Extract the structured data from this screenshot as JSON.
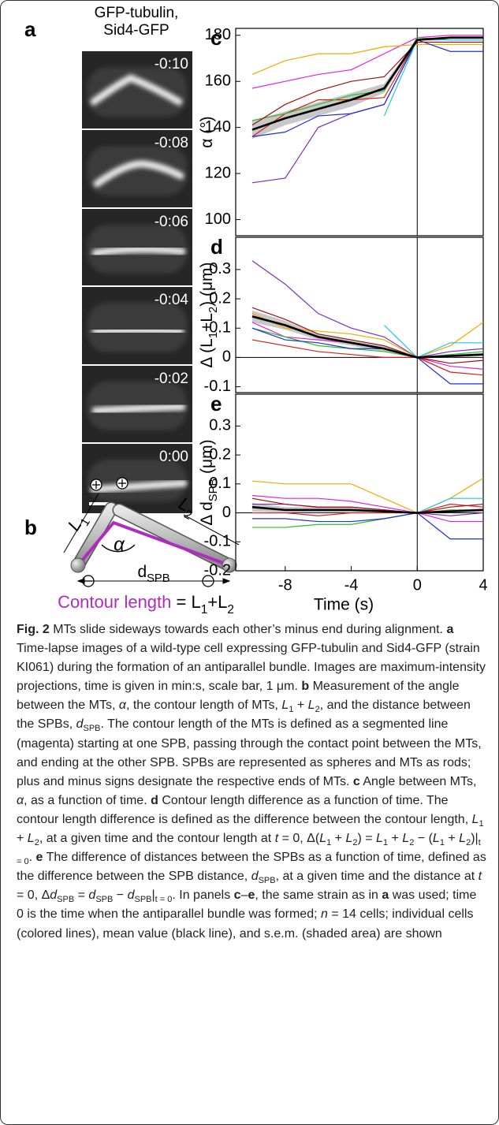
{
  "panel_a": {
    "label": "a",
    "title": [
      "GFP-tubulin,",
      "Sid4-GFP"
    ],
    "timestamps": [
      "-0:10",
      "-0:08",
      "-0:06",
      "-0:04",
      "-0:02",
      "0:00"
    ]
  },
  "panel_b": {
    "label": "b",
    "L1": [
      {
        "i": "L"
      },
      {
        "sub": "1"
      }
    ],
    "L2": [
      {
        "i": "L"
      },
      {
        "sub": "2"
      }
    ],
    "alpha": "α",
    "dspb": [
      {
        "t": "d"
      },
      {
        "sub": "SPB"
      }
    ],
    "contour": "Contour length",
    "equation": [
      {
        "t": " = L"
      },
      {
        "sub": "1"
      },
      {
        "t": "+L"
      },
      {
        "sub": "2"
      }
    ]
  },
  "chart_data": [
    {
      "type": "line",
      "panel": "c",
      "ylabel": [
        {
          "t": "α (°)"
        }
      ],
      "x": [
        -10,
        -8,
        -6,
        -4,
        -2,
        0,
        2,
        4
      ],
      "xlim": [
        -11,
        4
      ],
      "ylim": [
        93,
        183
      ],
      "yticks": [
        100,
        120,
        140,
        160,
        180
      ],
      "series": [
        {
          "color": "#7b2fbe",
          "values": [
            116,
            118,
            140,
            146,
            150,
            178,
            179,
            179
          ]
        },
        {
          "color": "#e81fd6",
          "values": [
            157,
            160,
            163,
            165,
            172,
            179,
            180,
            180
          ]
        },
        {
          "color": "#f2a900",
          "values": [
            163,
            169,
            172,
            172,
            175,
            176,
            176,
            176
          ]
        },
        {
          "color": "#d81e1e",
          "values": [
            136,
            146,
            152,
            152,
            153,
            178,
            179,
            179
          ]
        },
        {
          "color": "#2bbf2b",
          "values": [
            143,
            146,
            150,
            154,
            156,
            179,
            178,
            178
          ]
        },
        {
          "color": "#1f2fd6",
          "values": [
            136,
            138,
            145,
            146,
            150,
            178,
            173,
            173
          ]
        },
        {
          "color": "#1fc8e8",
          "values": [
            null,
            null,
            null,
            null,
            145,
            178,
            178,
            178
          ]
        },
        {
          "color": "#a01010",
          "values": [
            141,
            150,
            156,
            160,
            162,
            177,
            177,
            177
          ]
        },
        {
          "color": "#000000",
          "values": [
            139,
            144,
            148,
            152,
            157,
            178,
            179,
            179
          ],
          "sem": [
            4,
            3,
            3,
            3,
            2,
            0.5,
            0.5,
            0.5
          ]
        }
      ]
    },
    {
      "type": "line",
      "panel": "d",
      "ylabel": [
        {
          "t": "Δ (L"
        },
        {
          "sub": "1"
        },
        {
          "t": "+L"
        },
        {
          "sub": "2"
        },
        {
          "t": ") (μm)"
        }
      ],
      "x": [
        -10,
        -8,
        -6,
        -4,
        -2,
        0,
        2,
        4
      ],
      "xlim": [
        -11,
        4
      ],
      "ylim": [
        -0.12,
        0.41
      ],
      "yticks": [
        -0.1,
        0,
        0.1,
        0.2,
        0.3
      ],
      "series": [
        {
          "color": "#7b2fbe",
          "values": [
            0.33,
            0.25,
            0.15,
            0.1,
            0.07,
            0,
            0.02,
            0.03
          ]
        },
        {
          "color": "#e81fd6",
          "values": [
            0.12,
            0.07,
            0.06,
            0.05,
            0.03,
            0,
            -0.03,
            -0.04
          ]
        },
        {
          "color": "#f2a900",
          "values": [
            0.15,
            0.1,
            0.09,
            0.08,
            0.06,
            0,
            0.04,
            0.12
          ]
        },
        {
          "color": "#d81e1e",
          "values": [
            0.06,
            0.04,
            0.02,
            0.01,
            0,
            0,
            -0.05,
            -0.06
          ]
        },
        {
          "color": "#2bbf2b",
          "values": [
            0.1,
            0.07,
            0.04,
            0.03,
            0.02,
            0,
            0.01,
            0.02
          ]
        },
        {
          "color": "#1f2fd6",
          "values": [
            0.1,
            0.06,
            0.05,
            0.03,
            0.03,
            0,
            -0.09,
            -0.09
          ]
        },
        {
          "color": "#1fc8e8",
          "values": [
            null,
            null,
            null,
            null,
            0.11,
            0,
            0.05,
            0.05
          ]
        },
        {
          "color": "#a01010",
          "values": [
            0.17,
            0.13,
            0.08,
            0.06,
            0.04,
            0,
            -0.02,
            -0.01
          ]
        },
        {
          "color": "#000000",
          "values": [
            0.14,
            0.11,
            0.07,
            0.05,
            0.03,
            0,
            0.005,
            0.01
          ],
          "sem": [
            0.02,
            0.015,
            0.01,
            0.01,
            0.01,
            0,
            0.005,
            0.005
          ]
        }
      ]
    },
    {
      "type": "line",
      "panel": "e",
      "ylabel": [
        {
          "t": "Δ d"
        },
        {
          "sub": "SPB"
        },
        {
          "t": " (μm)"
        }
      ],
      "x": [
        -10,
        -8,
        -6,
        -4,
        -2,
        0,
        2,
        4
      ],
      "xlim": [
        -11,
        4
      ],
      "ylim": [
        -0.2,
        0.41
      ],
      "yticks": [
        -0.2,
        -0.1,
        0,
        0.1,
        0.2,
        0.3
      ],
      "xticks": [
        -8,
        -4,
        0,
        4
      ],
      "xlabel": "Time (s)",
      "series": [
        {
          "color": "#7b2fbe",
          "values": [
            0.03,
            0.03,
            0.02,
            0.02,
            0.01,
            0,
            -0.01,
            0
          ]
        },
        {
          "color": "#e81fd6",
          "values": [
            0.06,
            0.05,
            0.05,
            0.04,
            0.02,
            0,
            -0.03,
            -0.03
          ]
        },
        {
          "color": "#f2a900",
          "values": [
            0.11,
            0.1,
            0.1,
            0.1,
            0.05,
            0,
            0.05,
            0.12
          ]
        },
        {
          "color": "#d81e1e",
          "values": [
            0,
            0,
            -0.01,
            0,
            0,
            0,
            0.03,
            0.02
          ]
        },
        {
          "color": "#2bbf2b",
          "values": [
            -0.05,
            -0.05,
            -0.04,
            -0.04,
            -0.02,
            0,
            0.01,
            0.01
          ]
        },
        {
          "color": "#1f2fd6",
          "values": [
            -0.02,
            -0.02,
            -0.03,
            -0.03,
            -0.02,
            0,
            -0.09,
            -0.09
          ]
        },
        {
          "color": "#1fc8e8",
          "values": [
            null,
            null,
            null,
            null,
            0.01,
            0,
            0.05,
            0.05
          ]
        },
        {
          "color": "#a01010",
          "values": [
            0.05,
            0.03,
            0.02,
            0.02,
            0.01,
            0,
            0.02,
            0.03
          ]
        },
        {
          "color": "#000000",
          "values": [
            0.02,
            0.01,
            0.01,
            0.01,
            0.005,
            0,
            0.005,
            0.01
          ],
          "sem": [
            0.015,
            0.01,
            0.01,
            0.01,
            0.005,
            0,
            0.005,
            0.005
          ]
        }
      ]
    }
  ],
  "caption": [
    {
      "b": "Fig. 2"
    },
    {
      "t": " MTs slide sideways towards each other’s minus end during alignment. "
    },
    {
      "b": "a"
    },
    {
      "t": " Time-lapse images of a wild-type cell expressing GFP-tubulin and Sid4-GFP (strain KI061) during the formation of an antiparallel bundle. Images are maximum-intensity projections, time is given in min:s, scale bar, 1 μm. "
    },
    {
      "b": "b"
    },
    {
      "t": " Measurement of the angle between the MTs, "
    },
    {
      "i": "α"
    },
    {
      "t": ", the contour length of MTs, "
    },
    {
      "i": "L"
    },
    {
      "sub": "1"
    },
    {
      "t": " + "
    },
    {
      "i": "L"
    },
    {
      "sub": "2"
    },
    {
      "t": ", and the distance between the SPBs, "
    },
    {
      "i": "d"
    },
    {
      "sub": "SPB"
    },
    {
      "t": ". The contour length of the MTs is defined as a segmented line (magenta) starting at one SPB, passing through the contact point between the MTs, and ending at the other SPB. SPBs are represented as spheres and MTs as rods; plus and minus signs designate the respective ends of MTs. "
    },
    {
      "b": "c"
    },
    {
      "t": " Angle between MTs, "
    },
    {
      "i": "α"
    },
    {
      "t": ", as a function of time. "
    },
    {
      "b": "d"
    },
    {
      "t": " Contour length difference as a function of time. The contour length difference is defined as the difference between the contour length, "
    },
    {
      "i": "L"
    },
    {
      "sub": "1"
    },
    {
      "t": " + "
    },
    {
      "i": "L"
    },
    {
      "sub": "2"
    },
    {
      "t": ", at a given time and the contour length at "
    },
    {
      "i": "t"
    },
    {
      "t": " = 0, Δ("
    },
    {
      "i": "L"
    },
    {
      "sub": "1"
    },
    {
      "t": " + "
    },
    {
      "i": "L"
    },
    {
      "sub": "2"
    },
    {
      "t": ") = "
    },
    {
      "i": "L"
    },
    {
      "sub": "1"
    },
    {
      "t": " + "
    },
    {
      "i": "L"
    },
    {
      "sub": "2"
    },
    {
      "t": " − ("
    },
    {
      "i": "L"
    },
    {
      "sub": "1"
    },
    {
      "t": " + "
    },
    {
      "i": "L"
    },
    {
      "sub": "2"
    },
    {
      "t": ")|"
    },
    {
      "sub": "t = 0"
    },
    {
      "t": ". "
    },
    {
      "b": "e"
    },
    {
      "t": " The difference of distances between the SPBs as a function of time, defined as the difference between the SPB distance, "
    },
    {
      "i": "d"
    },
    {
      "sub": "SPB"
    },
    {
      "t": ", at a given time and the distance at "
    },
    {
      "i": "t"
    },
    {
      "t": " = 0, Δ"
    },
    {
      "i": "d"
    },
    {
      "sub": "SPB"
    },
    {
      "t": " = "
    },
    {
      "i": "d"
    },
    {
      "sub": "SPB"
    },
    {
      "t": " − "
    },
    {
      "i": "d"
    },
    {
      "sub": "SPB"
    },
    {
      "t": "|"
    },
    {
      "sub": "t = 0"
    },
    {
      "t": ". In panels "
    },
    {
      "b": "c"
    },
    {
      "t": "–"
    },
    {
      "b": "e"
    },
    {
      "t": ", the same strain as in "
    },
    {
      "b": "a"
    },
    {
      "t": " was used; time 0 is the time when the antiparallel bundle was formed; "
    },
    {
      "i": "n"
    },
    {
      "t": " = 14 cells; individual cells (colored lines), mean value (black line), and s.e.m. (shaded area) are shown"
    }
  ]
}
